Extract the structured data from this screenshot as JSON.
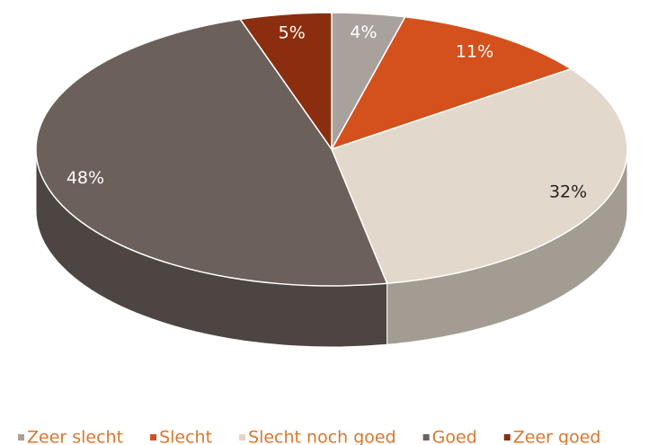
{
  "chart_data": {
    "type": "pie",
    "categories": [
      "Zeer slecht",
      "Slecht",
      "Slecht noch goed",
      "Goed",
      "Zeer goed"
    ],
    "values": [
      4,
      11,
      32,
      48,
      5
    ],
    "value_labels": [
      "4%",
      "11%",
      "32%",
      "48%",
      "5%"
    ],
    "colors": [
      "#a9a29c",
      "#d4501c",
      "#e3d8cc",
      "#6b605a",
      "#8b2e10"
    ],
    "legend": "bottom"
  }
}
